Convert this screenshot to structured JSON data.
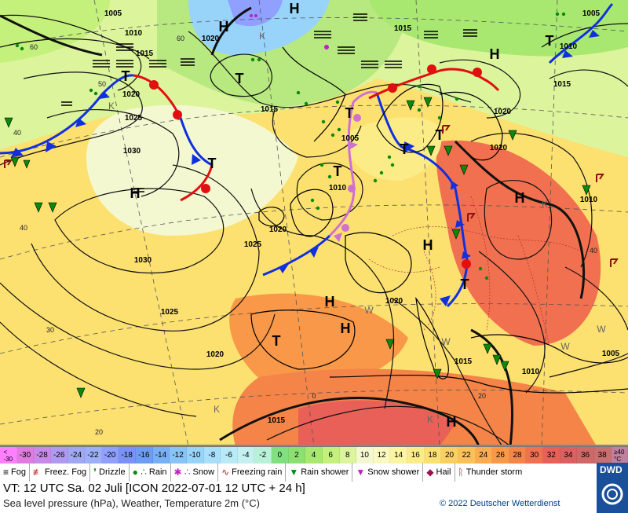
{
  "map": {
    "labels": {
      "H": [
        {
          "t": "H",
          "k": "high"
        }
      ],
      "T": [
        {
          "t": "T",
          "k": "low"
        }
      ]
    },
    "isobars": [
      "1005",
      "1010",
      "1015",
      "1020",
      "1025",
      "1030",
      "1020",
      "1015",
      "1010",
      "1005",
      "1025",
      "1030",
      "1025",
      "1020",
      "1015",
      "1010",
      "1005",
      "1020",
      "1015",
      "1010",
      "1015",
      "1020",
      "1015",
      "1025"
    ],
    "latlabels": [
      "60",
      "50",
      "40",
      "30",
      "20",
      "40",
      "0",
      "20",
      "K",
      "K",
      "K",
      "W",
      "W",
      "W",
      "W"
    ],
    "colors": {
      "front_cold": "#1030e0",
      "front_warm": "#e01010",
      "front_occluded": "#d070d0",
      "isobar": "#111111"
    }
  },
  "scale": {
    "cells": [
      {
        "label": "<\n-30",
        "color": "#ff80ff"
      },
      {
        "label": "-30",
        "color": "#e07ce0"
      },
      {
        "label": "-28",
        "color": "#c88ae8"
      },
      {
        "label": "-26",
        "color": "#b09af0"
      },
      {
        "label": "-24",
        "color": "#a0a8f4"
      },
      {
        "label": "-22",
        "color": "#9cb0f8"
      },
      {
        "label": "-20",
        "color": "#8fa0ff"
      },
      {
        "label": "-18",
        "color": "#7a92f8"
      },
      {
        "label": "-16",
        "color": "#6d9cf4"
      },
      {
        "label": "-14",
        "color": "#78b0f8"
      },
      {
        "label": "-12",
        "color": "#88c4f8"
      },
      {
        "label": "-10",
        "color": "#98d4fa"
      },
      {
        "label": "-8",
        "color": "#a8e0fc"
      },
      {
        "label": "-6",
        "color": "#b8eaf8"
      },
      {
        "label": "-4",
        "color": "#c4f0f0"
      },
      {
        "label": "-2",
        "color": "#b8f0d8"
      },
      {
        "label": "0",
        "color": "#80e080"
      },
      {
        "label": "2",
        "color": "#8ce070"
      },
      {
        "label": "4",
        "color": "#a8e870"
      },
      {
        "label": "6",
        "color": "#c4f07c"
      },
      {
        "label": "8",
        "color": "#dcf49c"
      },
      {
        "label": "10",
        "color": "#f4f8d0"
      },
      {
        "label": "12",
        "color": "#fafac0"
      },
      {
        "label": "14",
        "color": "#fcf4a0"
      },
      {
        "label": "16",
        "color": "#fcec88"
      },
      {
        "label": "18",
        "color": "#fce070"
      },
      {
        "label": "20",
        "color": "#fcd060"
      },
      {
        "label": "22",
        "color": "#fcc058"
      },
      {
        "label": "24",
        "color": "#fcac50"
      },
      {
        "label": "26",
        "color": "#f89848"
      },
      {
        "label": "28",
        "color": "#f48448"
      },
      {
        "label": "30",
        "color": "#f07050"
      },
      {
        "label": "32",
        "color": "#e86058"
      },
      {
        "label": "34",
        "color": "#dc6060"
      },
      {
        "label": "36",
        "color": "#d06868"
      },
      {
        "label": "38",
        "color": "#c87070"
      },
      {
        "label": "≥40\n°C",
        "color": "#c080a0"
      }
    ]
  },
  "legend": {
    "fog": "Fog",
    "freez_fog": "Freez. Fog",
    "drizzle": "Drizzle",
    "rain": "Rain",
    "snow": "Snow",
    "freezing_rain": "Freezing rain",
    "rain_shower": "Rain shower",
    "snow_shower": "Snow shower",
    "hail": "Hail",
    "thunderstorm": "Thunder storm"
  },
  "footer": {
    "vt": "VT: 12 UTC Sa.  02 Juli [ICON 2022-07-01  12 UTC + 24 h]",
    "param": "Sea level pressure (hPa), Weather, Temperature 2m (°C)",
    "copyright": "© 2022 Deutscher Wetterdienst",
    "logo": "DWD"
  }
}
